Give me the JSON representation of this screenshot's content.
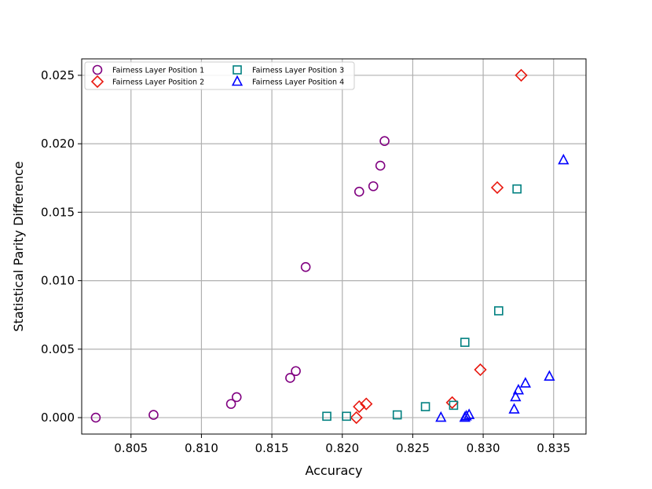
{
  "chart_data": {
    "type": "scatter",
    "xlabel": "Accuracy",
    "ylabel": "Statistical Parity Difference",
    "xlim": [
      0.8015,
      0.8373
    ],
    "ylim": [
      -0.0012,
      0.0262
    ],
    "x_ticks": [
      "0.805",
      "0.810",
      "0.815",
      "0.820",
      "0.825",
      "0.830",
      "0.835"
    ],
    "x_tick_values": [
      0.805,
      0.81,
      0.815,
      0.82,
      0.825,
      0.83,
      0.835
    ],
    "y_ticks": [
      "0.000",
      "0.005",
      "0.010",
      "0.015",
      "0.020",
      "0.025"
    ],
    "y_tick_values": [
      0.0,
      0.005,
      0.01,
      0.015,
      0.02,
      0.025
    ],
    "grid": true,
    "legend_position": "top-left",
    "series": [
      {
        "name": "Fairness Layer Position 1",
        "marker": "circle",
        "color": "#800080",
        "points": [
          [
            0.8025,
            0.0
          ],
          [
            0.8066,
            0.0002
          ],
          [
            0.8121,
            0.001
          ],
          [
            0.8125,
            0.0015
          ],
          [
            0.8163,
            0.0029
          ],
          [
            0.8167,
            0.0034
          ],
          [
            0.8174,
            0.011
          ],
          [
            0.8212,
            0.0165
          ],
          [
            0.8222,
            0.0169
          ],
          [
            0.8227,
            0.0184
          ],
          [
            0.823,
            0.0202
          ]
        ]
      },
      {
        "name": "Fairness Layer Position 2",
        "marker": "diamond",
        "color": "#e8170e",
        "points": [
          [
            0.821,
            0.0
          ],
          [
            0.8212,
            0.0008
          ],
          [
            0.8217,
            0.001
          ],
          [
            0.8278,
            0.0011
          ],
          [
            0.8298,
            0.0035
          ],
          [
            0.831,
            0.0168
          ],
          [
            0.8327,
            0.025
          ]
        ]
      },
      {
        "name": "Fairness Layer Position 3",
        "marker": "square",
        "color": "#008080",
        "points": [
          [
            0.8189,
            0.0001
          ],
          [
            0.8203,
            0.0001
          ],
          [
            0.8239,
            0.0002
          ],
          [
            0.8259,
            0.0008
          ],
          [
            0.8279,
            0.0009
          ],
          [
            0.8287,
            0.0055
          ],
          [
            0.8311,
            0.0078
          ],
          [
            0.8324,
            0.0167
          ]
        ]
      },
      {
        "name": "Fairness Layer Position 4",
        "marker": "triangle",
        "color": "#0000ff",
        "points": [
          [
            0.827,
            0.0
          ],
          [
            0.8287,
            0.0
          ],
          [
            0.8288,
            0.0001
          ],
          [
            0.829,
            0.0002
          ],
          [
            0.8322,
            0.0006
          ],
          [
            0.8323,
            0.0015
          ],
          [
            0.8325,
            0.002
          ],
          [
            0.833,
            0.0025
          ],
          [
            0.8347,
            0.003
          ],
          [
            0.8357,
            0.0188
          ]
        ]
      }
    ]
  }
}
